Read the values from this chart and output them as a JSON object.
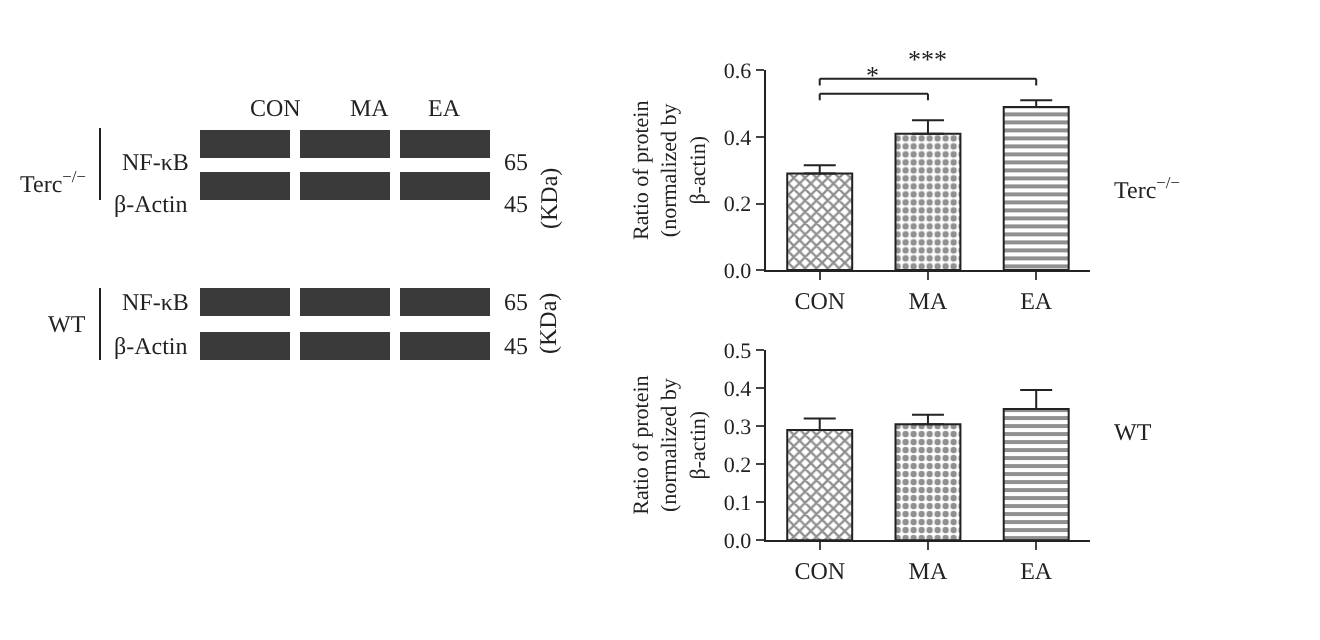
{
  "chart_data": [
    {
      "type": "other",
      "categories": [
        "CON",
        "MA",
        "EA"
      ],
      "annotations": [
        "Terc$^{−/−}$",
        "NF-κB",
        "β-Actin",
        "65",
        "45",
        "(KDa)",
        "WT",
        "NF-κB",
        "β-Actin",
        "65",
        "45",
        "(KDa)"
      ]
    },
    {
      "type": "bar",
      "categories": [
        "CON",
        "MA",
        "EA"
      ],
      "values": [
        0.29,
        0.41,
        0.49
      ],
      "errors": [
        [
          0.29,
          0.315
        ],
        [
          0.41,
          0.45
        ],
        [
          0.49,
          0.51
        ]
      ],
      "colors": [
        "#222222",
        "#222222",
        "#222222"
      ],
      "ylabel": "Ratio of protein\n(normalized by\nβ-actin)",
      "ylim": [
        0,
        0.6
      ],
      "yticks": [
        {
          "value": 0,
          "label": "0.0"
        },
        0.2,
        0.4,
        0.6
      ],
      "annotations": [
        "*",
        "***",
        "Terc$^{−/−}$"
      ]
    },
    {
      "type": "bar",
      "categories": [
        "CON",
        "MA",
        "EA"
      ],
      "values": [
        0.29,
        0.305,
        0.345
      ],
      "errors": [
        [
          0.29,
          0.32
        ],
        [
          0.305,
          0.33
        ],
        [
          0.345,
          0.395
        ]
      ],
      "colors": [
        "#222222",
        "#222222",
        "#222222"
      ],
      "ylabel": "Ratio of protein\n(normalized by\nβ-actin)",
      "ylim": [
        0,
        0.5
      ],
      "yticks": [
        {
          "value": 0,
          "label": "0.0"
        },
        0.1,
        0.2,
        0.3,
        0.4,
        0.5
      ],
      "annotations": [
        "WT"
      ]
    }
  ]
}
